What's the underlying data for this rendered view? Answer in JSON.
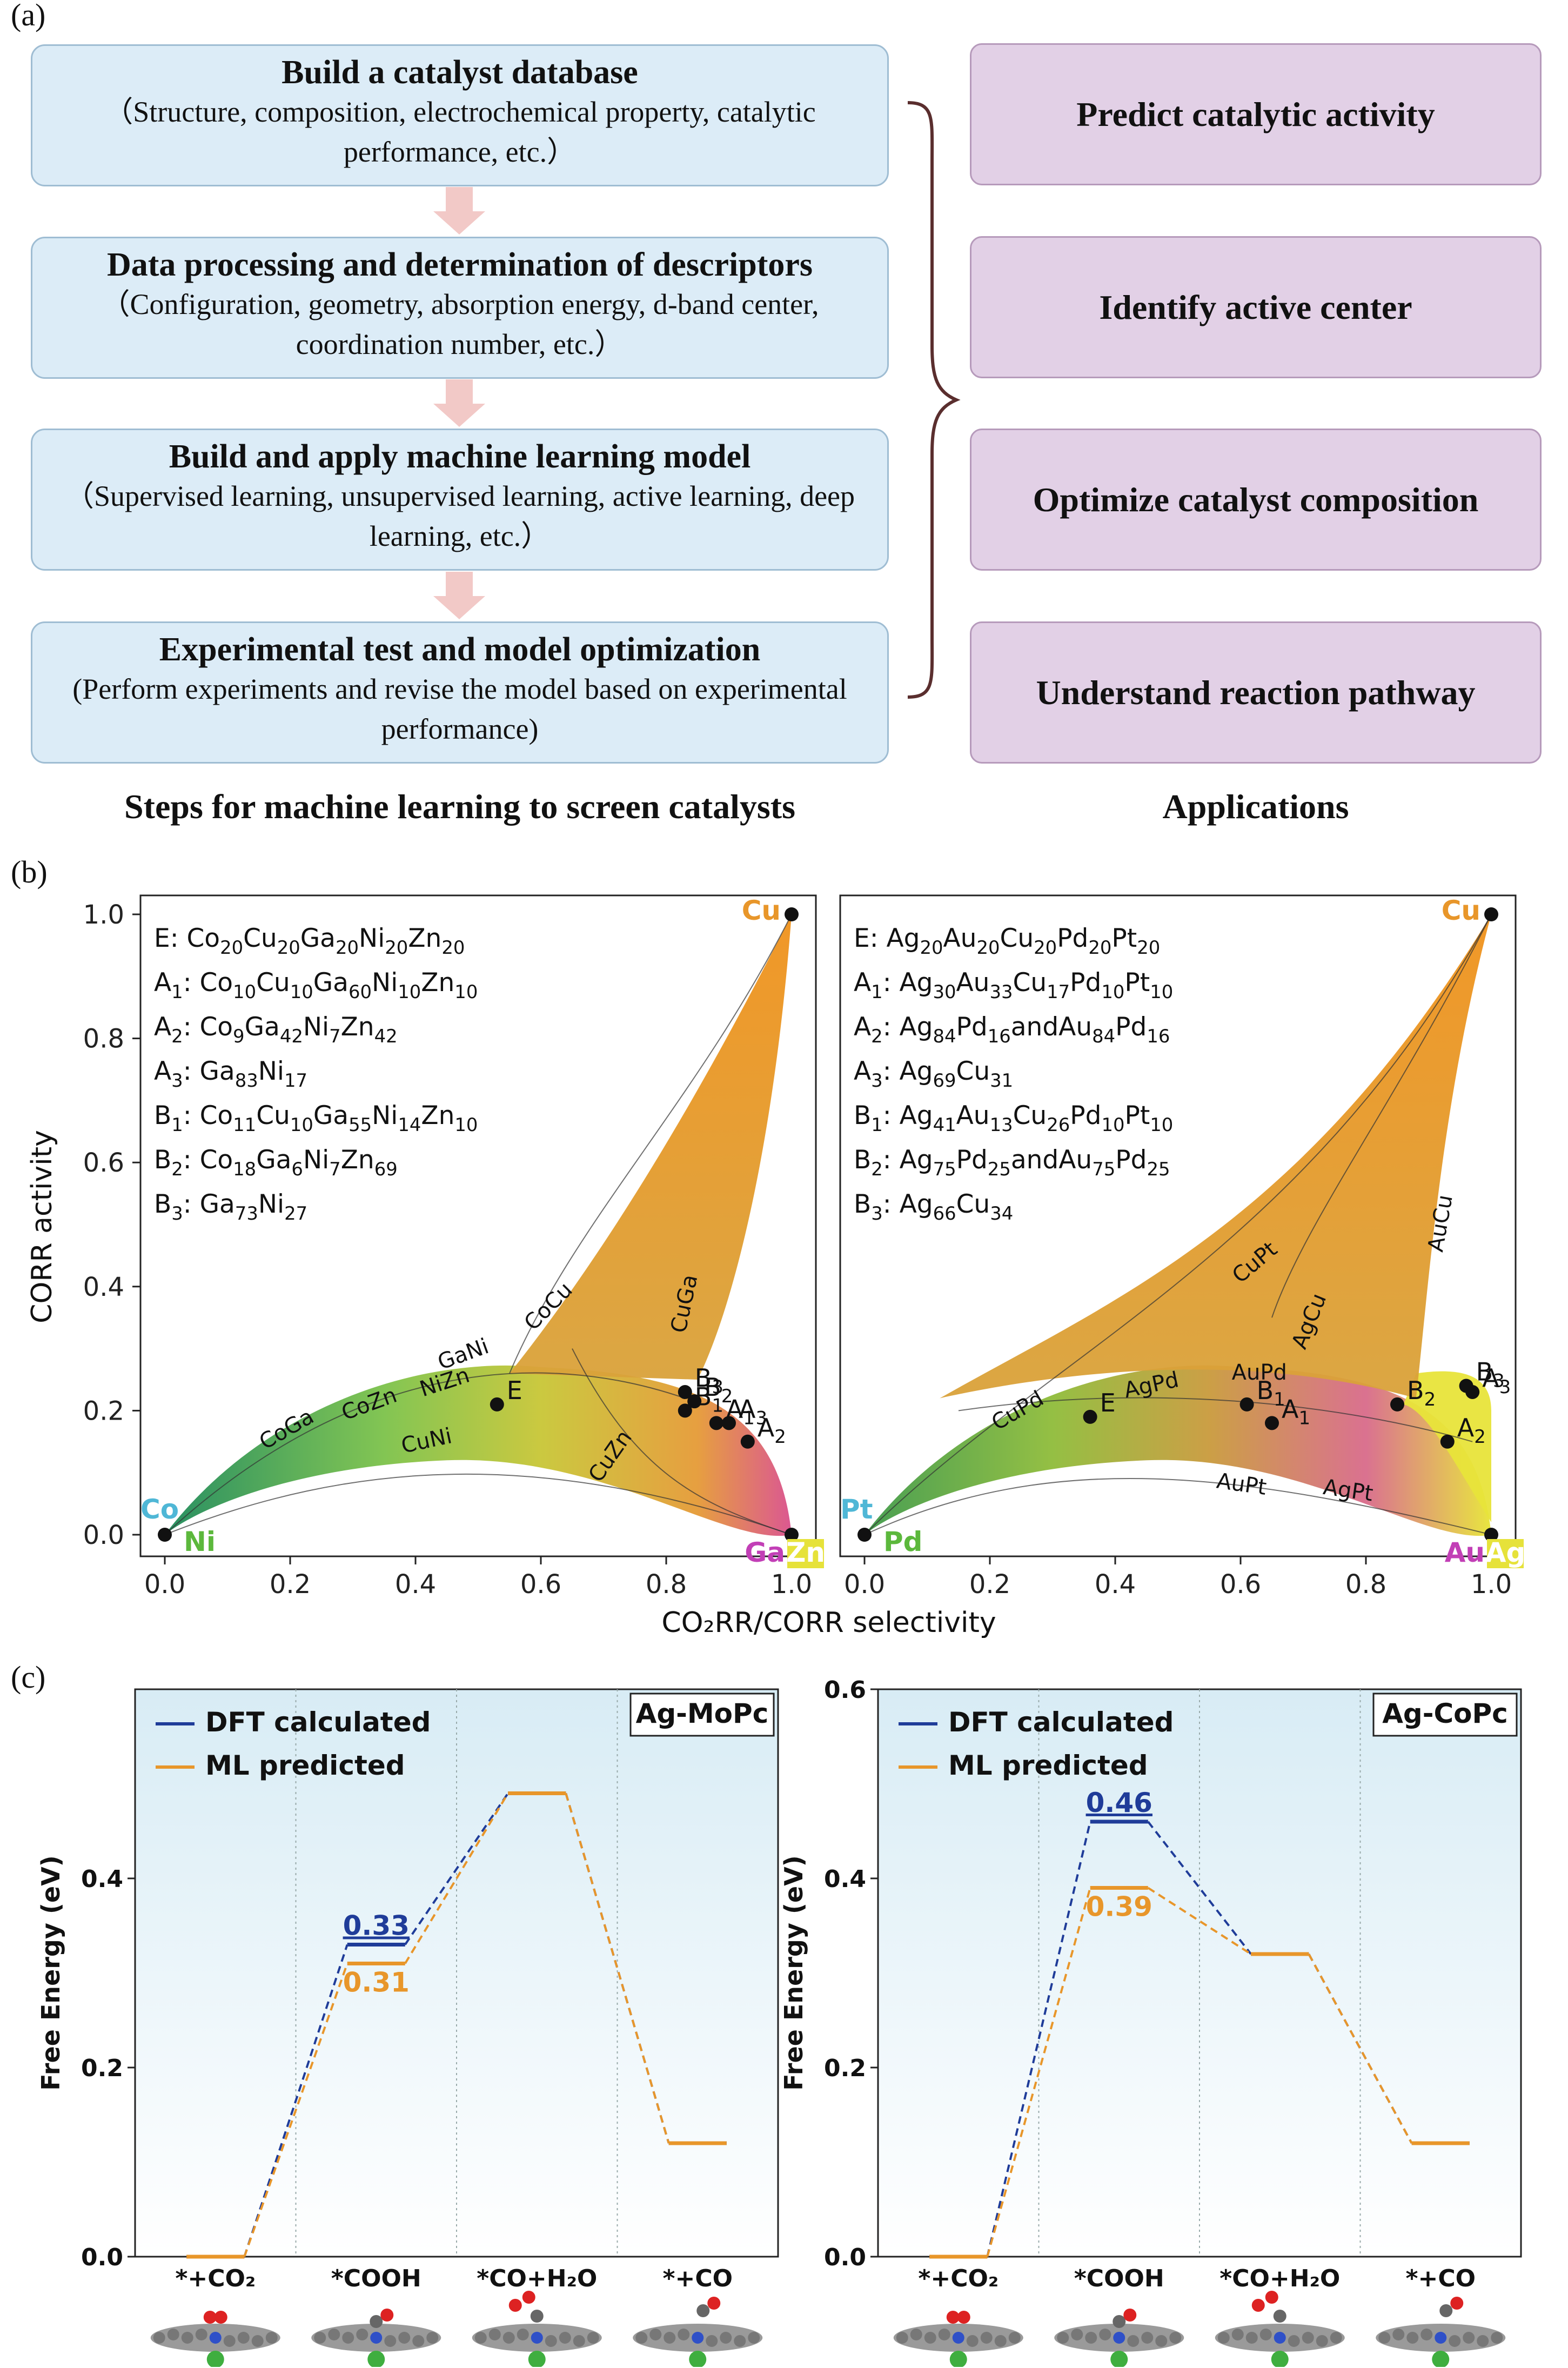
{
  "panel_labels": {
    "a": "(a)",
    "b": "(b)",
    "c": "(c)"
  },
  "flow_steps": [
    {
      "title": "Build a catalyst database",
      "desc": "（Structure, composition, electrochemical property, catalytic performance, etc.）"
    },
    {
      "title": "Data processing and determination of descriptors",
      "desc": "（Configuration, geometry, absorption energy, d-band center, coordination number, etc.）"
    },
    {
      "title": "Build and apply machine learning model",
      "desc": "（Supervised learning, unsupervised learning, active learning, deep learning, etc.）"
    },
    {
      "title": "Experimental test and model optimization",
      "desc": "(Perform experiments and revise the model based on experimental performance)"
    }
  ],
  "applications": [
    "Predict catalytic activity",
    "Identify active center",
    "Optimize catalyst composition",
    "Understand reaction pathway"
  ],
  "captions": {
    "steps": "Steps for machine learning to screen catalysts",
    "applications": "Applications"
  },
  "colors": {
    "step_fill": "#dcecf7",
    "app_fill": "#e2d0e6",
    "arrow": "#f2c9c7",
    "dft": "#1f3c99",
    "ml": "#e8962a"
  },
  "chart_data": [
    {
      "type": "scatter",
      "xlabel": "CO₂RR/CORR selectivity",
      "ylabel": "CORR activity",
      "xlim": [
        0,
        1.0
      ],
      "ylim": [
        0,
        1.0
      ],
      "xticks": [
        "0.0",
        "0.2",
        "0.4",
        "0.6",
        "0.8",
        "1.0"
      ],
      "yticks": [
        "0.0",
        "0.2",
        "0.4",
        "0.6",
        "0.8",
        "1.0"
      ],
      "corners": [
        {
          "label": "Cu",
          "x": 1.0,
          "y": 1.0,
          "color": "#e8962a"
        },
        {
          "label": "Co",
          "x": 0,
          "y": 0,
          "color": "#4fb7d6"
        },
        {
          "label": "Ni",
          "x": 0,
          "y": 0,
          "color": "#5cb83c"
        },
        {
          "label": "Ga",
          "x": 1.0,
          "y": 0,
          "color": "#c23fb6"
        },
        {
          "label": "Zn",
          "x": 1.0,
          "y": 0,
          "color": "#e6e23a"
        }
      ],
      "legend": [
        {
          "name": "E",
          "formula": "Co20Cu20Ga20Ni20Zn20"
        },
        {
          "name": "A1",
          "formula": "Co10Cu10Ga60Ni10Zn10"
        },
        {
          "name": "A2",
          "formula": "Co9Ga42Ni7Zn42"
        },
        {
          "name": "A3",
          "formula": "Ga83Ni17"
        },
        {
          "name": "B1",
          "formula": "Co11Cu10Ga55Ni14Zn10"
        },
        {
          "name": "B2",
          "formula": "Co18Ga6Ni7Zn69"
        },
        {
          "name": "B3",
          "formula": "Ga73Ni27"
        }
      ],
      "points": [
        {
          "label": "E",
          "x": 0.53,
          "y": 0.21
        },
        {
          "label": "A1",
          "x": 0.88,
          "y": 0.18
        },
        {
          "label": "A2",
          "x": 0.93,
          "y": 0.15
        },
        {
          "label": "A3",
          "x": 0.9,
          "y": 0.18
        },
        {
          "label": "B1",
          "x": 0.83,
          "y": 0.2
        },
        {
          "label": "B2",
          "x": 0.845,
          "y": 0.215
        },
        {
          "label": "B3",
          "x": 0.83,
          "y": 0.23
        }
      ],
      "curve_labels": [
        "GaNi",
        "NiZn",
        "CoCu",
        "CuGa",
        "CoGa",
        "CoZn",
        "CuNi",
        "CuZn"
      ]
    },
    {
      "type": "scatter",
      "xlabel": "CO₂RR/CORR selectivity",
      "xlim": [
        0,
        1.0
      ],
      "ylim": [
        0,
        1.0
      ],
      "xticks": [
        "0.0",
        "0.2",
        "0.4",
        "0.6",
        "0.8",
        "1.0"
      ],
      "corners": [
        {
          "label": "Cu",
          "x": 1.0,
          "y": 1.0,
          "color": "#e8962a"
        },
        {
          "label": "Pt",
          "x": 0,
          "y": 0,
          "color": "#4fb7d6"
        },
        {
          "label": "Pd",
          "x": 0,
          "y": 0,
          "color": "#5cb83c"
        },
        {
          "label": "Au",
          "x": 1.0,
          "y": 0,
          "color": "#c23fb6"
        },
        {
          "label": "Ag",
          "x": 1.0,
          "y": 0,
          "color": "#e6e23a"
        }
      ],
      "legend": [
        {
          "name": "E",
          "formula": "Ag20Au20Cu20Pd20Pt20"
        },
        {
          "name": "A1",
          "formula": "Ag30Au33Cu17Pd10Pt10"
        },
        {
          "name": "A2",
          "formula": "Ag84Pd16andAu84Pd16"
        },
        {
          "name": "A3",
          "formula": "Ag69Cu31"
        },
        {
          "name": "B1",
          "formula": "Ag41Au13Cu26Pd10Pt10"
        },
        {
          "name": "B2",
          "formula": "Ag75Pd25andAu75Pd25"
        },
        {
          "name": "B3",
          "formula": "Ag66Cu34"
        }
      ],
      "points": [
        {
          "label": "E",
          "x": 0.36,
          "y": 0.19
        },
        {
          "label": "A1",
          "x": 0.65,
          "y": 0.18
        },
        {
          "label": "A2",
          "x": 0.93,
          "y": 0.15
        },
        {
          "label": "A3",
          "x": 0.97,
          "y": 0.23
        },
        {
          "label": "B1",
          "x": 0.61,
          "y": 0.21
        },
        {
          "label": "B2",
          "x": 0.85,
          "y": 0.21
        },
        {
          "label": "B3",
          "x": 0.96,
          "y": 0.24
        }
      ],
      "curve_labels": [
        "CuPt",
        "AuCu",
        "AgCu",
        "CuPd",
        "AgPd",
        "AuPd",
        "AuPt",
        "AgPt"
      ]
    },
    {
      "type": "line",
      "title": "Ag-MoPc",
      "ylabel": "Free Energy (eV)",
      "categories": [
        "*+CO₂",
        "*COOH",
        "*CO+H₂O",
        "*+CO"
      ],
      "ylim": [
        0,
        0.6
      ],
      "yticks": [
        "0.0",
        "0.2",
        "0.4"
      ],
      "series": [
        {
          "name": "DFT calculated",
          "values": [
            0,
            0.33,
            0.49,
            0.12
          ]
        },
        {
          "name": "ML  predicted",
          "values": [
            0,
            0.31,
            0.49,
            0.12
          ]
        }
      ],
      "annotations": [
        "0.33",
        "0.31"
      ]
    },
    {
      "type": "line",
      "title": "Ag-CoPc",
      "ylabel": "Free Energy (eV)",
      "categories": [
        "*+CO₂",
        "*COOH",
        "*CO+H₂O",
        "*+CO"
      ],
      "ylim": [
        0,
        0.6
      ],
      "yticks": [
        "0.0",
        "0.2",
        "0.4",
        "0.6"
      ],
      "series": [
        {
          "name": "DFT calculated",
          "values": [
            0,
            0.46,
            0.32,
            0.12
          ]
        },
        {
          "name": "ML  predicted",
          "values": [
            0,
            0.39,
            0.32,
            0.12
          ]
        }
      ],
      "annotations": [
        "0.46",
        "0.39"
      ]
    }
  ]
}
